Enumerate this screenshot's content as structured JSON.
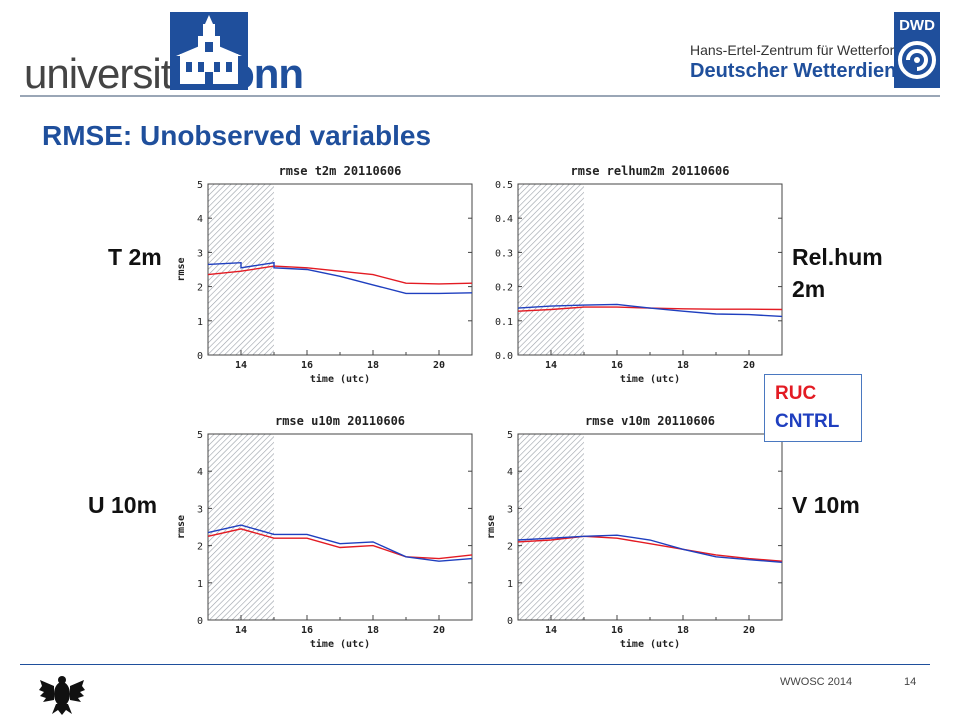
{
  "header": {
    "university_prefix": "universität",
    "university_suffix": "bonn",
    "dwd_subtitle": "Hans-Ertel-Zentrum für Wetterforschung",
    "dwd_title": "Deutscher Wetterdienst",
    "dwd_logo_text": "DWD"
  },
  "slide_title": "RMSE: Unobserved variables",
  "labels": {
    "t2m": "T 2m",
    "relhum_line1": "Rel.hum",
    "relhum_line2": "2m",
    "u10m": "U 10m",
    "v10m": "V 10m"
  },
  "legend": {
    "ruc": "RUC",
    "cntrl": "CNTRL"
  },
  "footer": {
    "conference": "WWOSC 2014",
    "page": "14"
  },
  "colors": {
    "ruc": "#e31b23",
    "cntrl": "#1f3fbf",
    "title": "#1f4f9c"
  },
  "chart_data": [
    {
      "type": "line",
      "title": "rmse    t2m    20110606",
      "xlabel": "time (utc)",
      "ylabel": "rmse",
      "xlim": [
        13,
        21
      ],
      "ylim": [
        0,
        5
      ],
      "xticks": [
        14,
        16,
        18,
        20
      ],
      "yticks": [
        "0",
        "1",
        "2",
        "3",
        "4",
        "5"
      ],
      "hatched_range": [
        13,
        15
      ],
      "series": [
        {
          "name": "RUC",
          "x": [
            13,
            14,
            14,
            15,
            15,
            16,
            17,
            18,
            19,
            20,
            21
          ],
          "y": [
            2.35,
            2.45,
            2.45,
            2.6,
            2.6,
            2.55,
            2.45,
            2.35,
            2.1,
            2.08,
            2.1
          ]
        },
        {
          "name": "CNTRL",
          "x": [
            13,
            14,
            14,
            15,
            15,
            16,
            17,
            18,
            19,
            20,
            21
          ],
          "y": [
            2.65,
            2.7,
            2.55,
            2.7,
            2.55,
            2.5,
            2.3,
            2.05,
            1.8,
            1.8,
            1.82
          ]
        }
      ]
    },
    {
      "type": "line",
      "title": "rmse    relhum2m    20110606",
      "xlabel": "time (utc)",
      "ylabel": "",
      "xlim": [
        13,
        21
      ],
      "ylim": [
        0,
        0.5
      ],
      "xticks": [
        14,
        16,
        18,
        20
      ],
      "yticks": [
        "0.0",
        "0.1",
        "0.2",
        "0.3",
        "0.4",
        "0.5"
      ],
      "hatched_range": [
        13,
        15
      ],
      "series": [
        {
          "name": "RUC",
          "x": [
            13,
            14,
            15,
            16,
            17,
            18,
            19,
            20,
            21
          ],
          "y": [
            0.128,
            0.133,
            0.14,
            0.14,
            0.137,
            0.135,
            0.134,
            0.134,
            0.133
          ]
        },
        {
          "name": "CNTRL",
          "x": [
            13,
            14,
            15,
            16,
            17,
            18,
            19,
            20,
            21
          ],
          "y": [
            0.137,
            0.143,
            0.146,
            0.148,
            0.137,
            0.128,
            0.12,
            0.118,
            0.113
          ]
        }
      ]
    },
    {
      "type": "line",
      "title": "rmse    u10m    20110606",
      "xlabel": "time (utc)",
      "ylabel": "rmse",
      "xlim": [
        13,
        21
      ],
      "ylim": [
        0,
        5
      ],
      "xticks": [
        14,
        16,
        18,
        20
      ],
      "yticks": [
        "0",
        "1",
        "2",
        "3",
        "4",
        "5"
      ],
      "hatched_range": [
        13,
        15
      ],
      "series": [
        {
          "name": "RUC",
          "x": [
            13,
            14,
            15,
            16,
            17,
            18,
            19,
            20,
            21
          ],
          "y": [
            2.25,
            2.45,
            2.2,
            2.2,
            1.95,
            2.0,
            1.7,
            1.65,
            1.75
          ]
        },
        {
          "name": "CNTRL",
          "x": [
            13,
            14,
            15,
            16,
            17,
            18,
            19,
            20,
            21
          ],
          "y": [
            2.35,
            2.55,
            2.3,
            2.3,
            2.05,
            2.1,
            1.7,
            1.58,
            1.65
          ]
        }
      ]
    },
    {
      "type": "line",
      "title": "rmse    v10m    20110606",
      "xlabel": "time (utc)",
      "ylabel": "rmse",
      "xlim": [
        13,
        21
      ],
      "ylim": [
        0,
        5
      ],
      "xticks": [
        14,
        16,
        18,
        20
      ],
      "yticks": [
        "0",
        "1",
        "2",
        "3",
        "4",
        "5"
      ],
      "hatched_range": [
        13,
        15
      ],
      "series": [
        {
          "name": "RUC",
          "x": [
            13,
            14,
            15,
            16,
            17,
            18,
            19,
            20,
            21
          ],
          "y": [
            2.1,
            2.15,
            2.25,
            2.2,
            2.05,
            1.9,
            1.75,
            1.65,
            1.58
          ]
        },
        {
          "name": "CNTRL",
          "x": [
            13,
            14,
            15,
            16,
            17,
            18,
            19,
            20,
            21
          ],
          "y": [
            2.15,
            2.2,
            2.25,
            2.28,
            2.15,
            1.9,
            1.7,
            1.62,
            1.55
          ]
        }
      ]
    }
  ]
}
